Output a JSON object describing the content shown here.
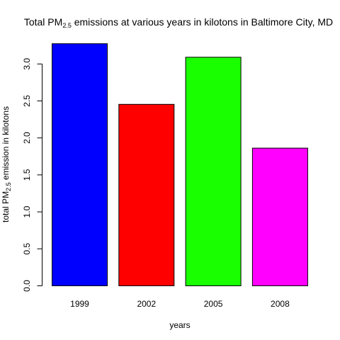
{
  "chart_data": {
    "type": "bar",
    "title": {
      "prefix": "Total PM",
      "subscript": "2.5",
      "suffix": " emissions at various years in kilotons in Baltimore City, MD"
    },
    "xlabel": "years",
    "ylabel": {
      "prefix": "total PM",
      "subscript": "2.5",
      "suffix": " emission in kilotons"
    },
    "categories": [
      "1999",
      "2002",
      "2005",
      "2008"
    ],
    "values": [
      3.274,
      2.454,
      3.091,
      1.862
    ],
    "colors": [
      "#0000ff",
      "#ff0000",
      "#1aff00",
      "#ff00ff"
    ],
    "ylim": [
      0,
      3.35
    ],
    "yticks": [
      0.0,
      0.5,
      1.0,
      1.5,
      2.0,
      2.5,
      3.0
    ],
    "ytick_labels": [
      "0.0",
      "0.5",
      "1.0",
      "1.5",
      "2.0",
      "2.5",
      "3.0"
    ],
    "grid": false,
    "legend": "none"
  }
}
